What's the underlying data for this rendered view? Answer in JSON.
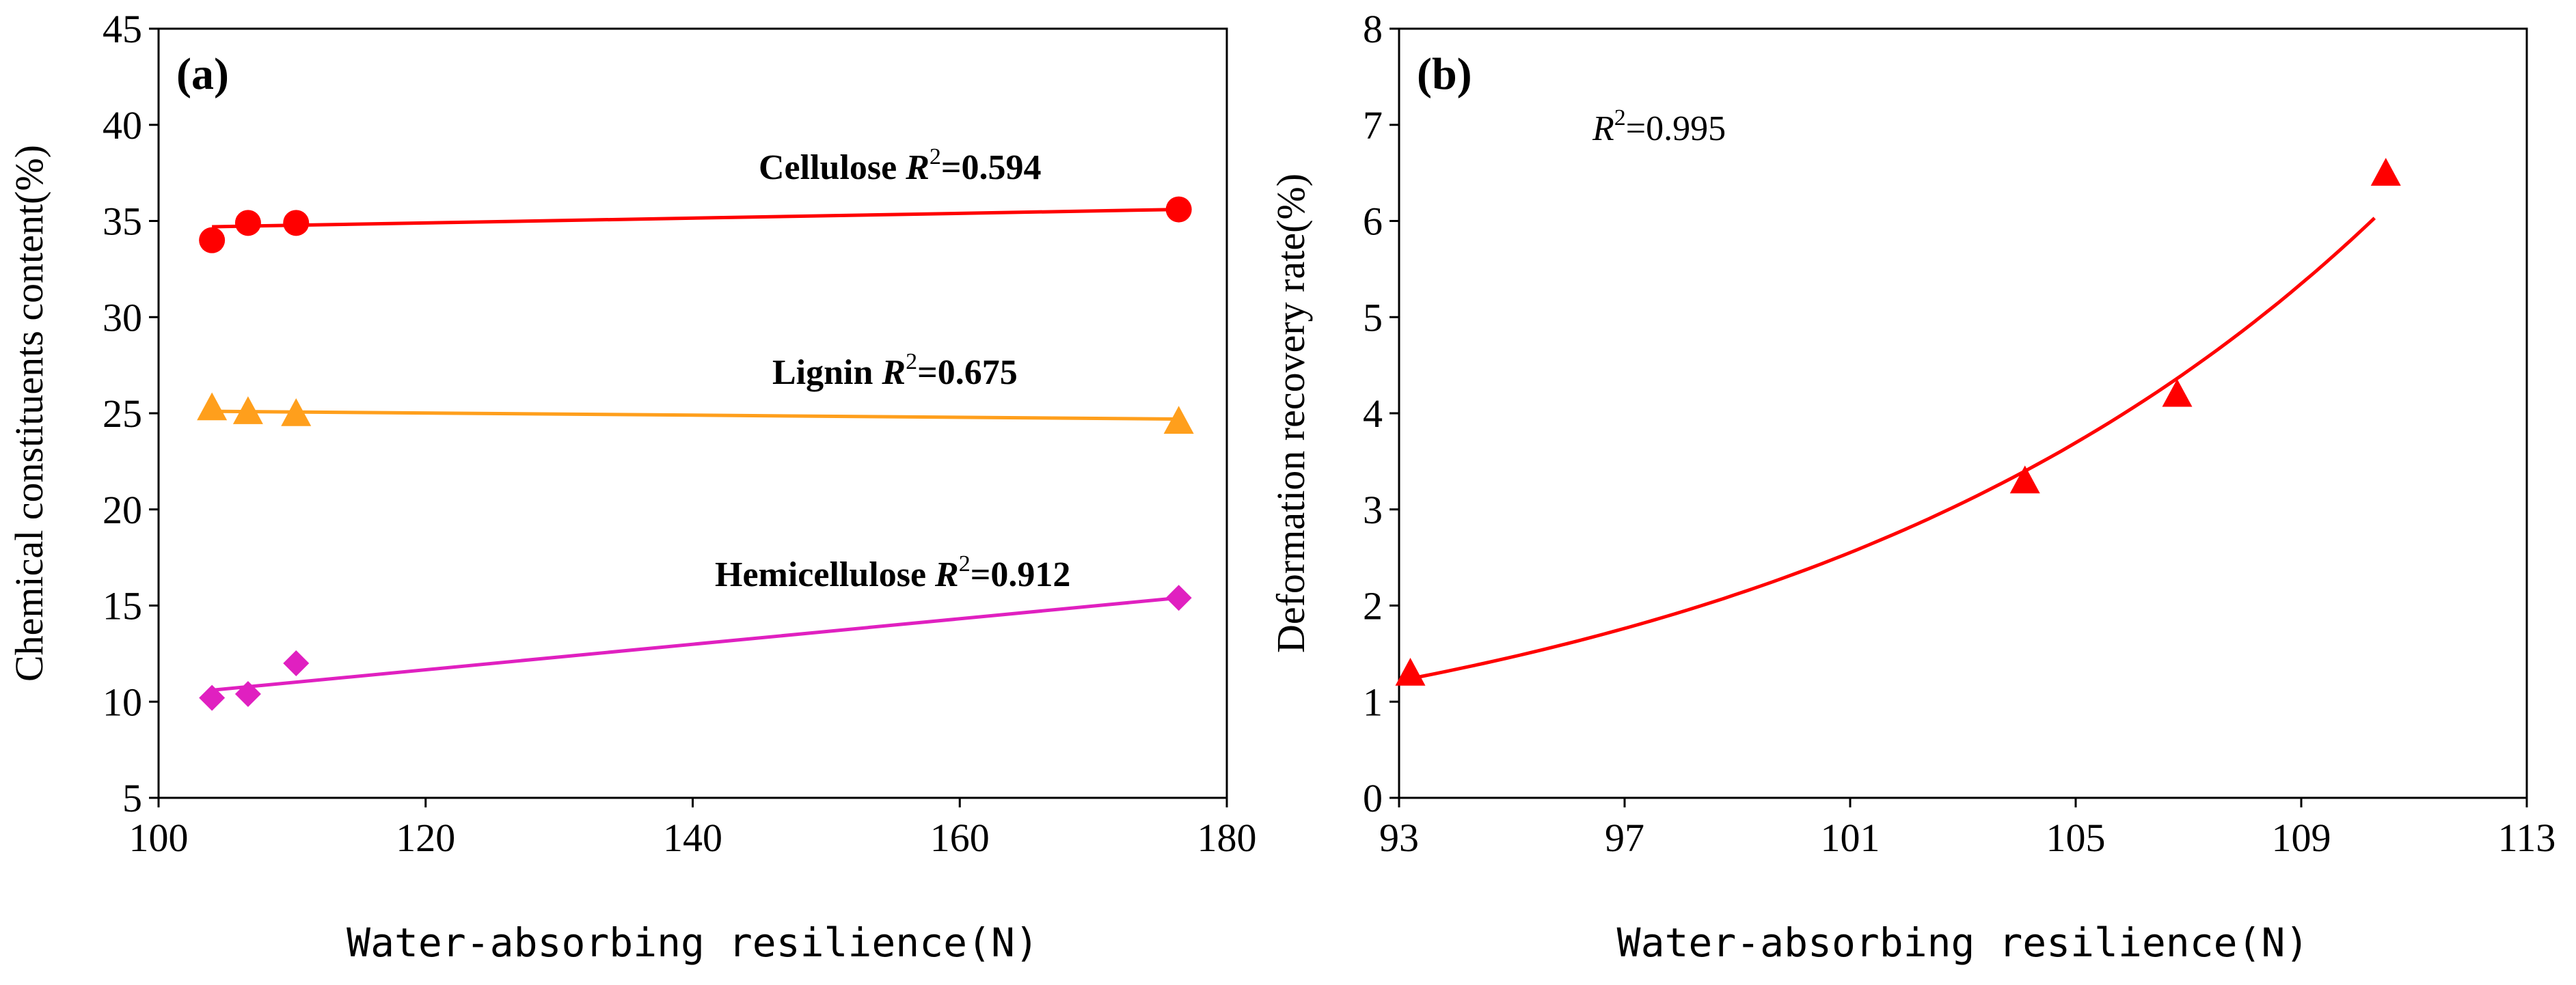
{
  "chart_data": [
    {
      "type": "scatter",
      "panel_label": "(a)",
      "xlabel": "Water-absorbing resilience(N)",
      "ylabel": "Chemical constituents content(%)",
      "xlim": [
        100,
        180
      ],
      "ylim": [
        5,
        45
      ],
      "xticks": [
        100,
        120,
        140,
        160,
        180
      ],
      "yticks": [
        5,
        10,
        15,
        20,
        25,
        30,
        35,
        40,
        45
      ],
      "series": [
        {
          "name": "Cellulose",
          "marker": "circle",
          "color": "#ff0000",
          "points": [
            [
              104,
              34.0
            ],
            [
              106.7,
              34.9
            ],
            [
              110.3,
              34.9
            ],
            [
              176.4,
              35.6
            ]
          ],
          "fit_line": [
            [
              104,
              34.7
            ],
            [
              176.4,
              35.6
            ]
          ],
          "r2_label": "Cellulose ",
          "r2_value": "=0.594"
        },
        {
          "name": "Lignin",
          "marker": "triangle",
          "color": "#ff9f1c",
          "points": [
            [
              104,
              25.3
            ],
            [
              106.7,
              25.1
            ],
            [
              110.3,
              25.0
            ],
            [
              176.4,
              24.6
            ]
          ],
          "fit_line": [
            [
              104,
              25.1
            ],
            [
              176.4,
              24.7
            ]
          ],
          "r2_label": "Lignin ",
          "r2_value": "=0.675"
        },
        {
          "name": "Hemicellulose",
          "marker": "diamond",
          "color": "#e020c0",
          "points": [
            [
              104,
              10.2
            ],
            [
              106.7,
              10.4
            ],
            [
              110.3,
              12.0
            ],
            [
              176.4,
              15.4
            ]
          ],
          "fit_line": [
            [
              104,
              10.6
            ],
            [
              176.4,
              15.4
            ]
          ],
          "r2_label": "Hemicellulose ",
          "r2_value": "=0.912"
        }
      ]
    },
    {
      "type": "scatter",
      "panel_label": "(b)",
      "xlabel": "Water-absorbing resilience(N)",
      "ylabel": "Deformation recovery rate(%)",
      "xlim": [
        93,
        113
      ],
      "ylim": [
        0,
        8
      ],
      "xticks": [
        93,
        97,
        101,
        105,
        109,
        113
      ],
      "yticks": [
        0,
        1,
        2,
        3,
        4,
        5,
        6,
        7,
        8
      ],
      "r2_text": "=0.995",
      "series": [
        {
          "name": "Deformation recovery rate",
          "marker": "triangle",
          "color": "#ff0000",
          "points": [
            [
              93.2,
              1.3
            ],
            [
              104.1,
              3.3
            ],
            [
              106.8,
              4.2
            ],
            [
              110.5,
              6.5
            ]
          ],
          "fit_curve": {
            "type": "exponential",
            "a": 1.24,
            "b": 0.0925,
            "x0": 93.2,
            "x_from": 93.2,
            "x_to": 110.3
          }
        }
      ]
    }
  ]
}
